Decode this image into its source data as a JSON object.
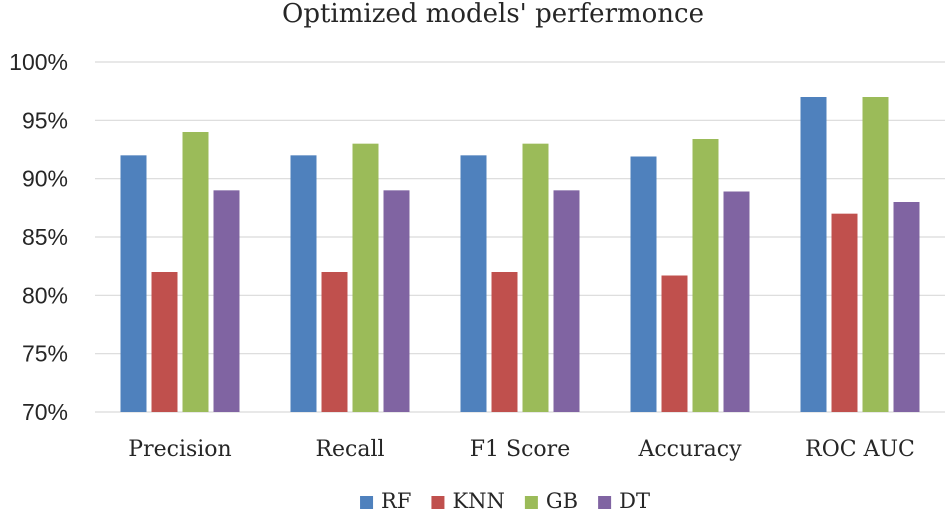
{
  "chart_data": {
    "type": "bar",
    "title": "Optimized models' perfermonce",
    "xlabel": "",
    "ylabel": "",
    "categories": [
      "Precision",
      "Recall",
      "F1 Score",
      "Accuracy",
      "ROC AUC"
    ],
    "series": [
      {
        "name": "RF",
        "color": "#4f81bd",
        "values": [
          92,
          92,
          92,
          91.9,
          97
        ]
      },
      {
        "name": "KNN",
        "color": "#c0504d",
        "values": [
          82,
          82,
          82,
          81.7,
          87
        ]
      },
      {
        "name": "GB",
        "color": "#9bbb59",
        "values": [
          94,
          93,
          93,
          93.4,
          97
        ]
      },
      {
        "name": "DT",
        "color": "#8064a2",
        "values": [
          89,
          89,
          89,
          88.9,
          88
        ]
      }
    ],
    "ylim": [
      70,
      100
    ],
    "yticks": [
      "70%",
      "75%",
      "80%",
      "85%",
      "90%",
      "95%",
      "100%"
    ],
    "ytick_values": [
      70,
      75,
      80,
      85,
      90,
      95,
      100
    ],
    "grid": true,
    "legend_position": "bottom"
  }
}
